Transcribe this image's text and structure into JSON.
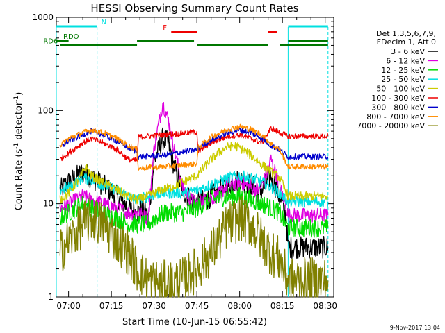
{
  "chart_data": {
    "type": "line",
    "title": "HESSI Observing Summary Count Rates",
    "xlabel": "Start Time (10-Jun-15 06:55:42)",
    "ylabel": "Count Rate (s",
    "ylabel_sup1": "-1",
    "ylabel_mid": " detector",
    "ylabel_sup2": "-1",
    "ylabel_end": ")",
    "y_scale": "log",
    "ylim": [
      1,
      1000
    ],
    "xlim": [
      "06:55:42",
      "08:33:00"
    ],
    "x_ticks": [
      "07:00",
      "07:15",
      "07:30",
      "07:45",
      "08:00",
      "08:15",
      "08:30"
    ],
    "y_ticks": [
      "1",
      "10",
      "100",
      "1000"
    ],
    "grid": false,
    "footer": "9-Nov-2017 13:04",
    "legend": {
      "position": "right",
      "header": [
        "Det 1,3,5,6,7,9,",
        "FDecim 1, Att 0"
      ],
      "entries": [
        {
          "name": "3 - 6 keV",
          "color": "#000000"
        },
        {
          "name": "6 - 12 keV",
          "color": "#e000e0"
        },
        {
          "name": "12 - 25 keV",
          "color": "#00dd00"
        },
        {
          "name": "25 - 50 keV",
          "color": "#00e0e0"
        },
        {
          "name": "50 - 100 keV",
          "color": "#cccc00"
        },
        {
          "name": "100 - 300 keV",
          "color": "#ee0000"
        },
        {
          "name": "300 - 800 keV",
          "color": "#0000cc"
        },
        {
          "name": "800 - 7000 keV",
          "color": "#ff8c00"
        },
        {
          "name": "7000 - 20000 keV",
          "color": "#808000"
        }
      ]
    },
    "flags": [
      {
        "label": "N",
        "color": "#00e0e0",
        "value": 800,
        "segments": [
          [
            "06:55:42",
            "07:10"
          ],
          [
            "08:17",
            "08:31"
          ]
        ]
      },
      {
        "label": "F",
        "color": "#ee0000",
        "value": 700,
        "segments": [
          [
            "07:36",
            "07:45"
          ],
          [
            "08:10",
            "08:13"
          ]
        ]
      },
      {
        "label": "RDO",
        "color": "#007700",
        "value": 560,
        "segments": [
          [
            "06:55:42",
            "07:00"
          ],
          [
            "07:24",
            "07:44"
          ],
          [
            "08:17",
            "08:31"
          ]
        ]
      },
      {
        "label": "RD6",
        "color": "#007700",
        "value": 500,
        "segments": [
          [
            "06:57",
            "07:24"
          ],
          [
            "07:45",
            "08:10"
          ],
          [
            "08:14",
            "08:31"
          ]
        ]
      }
    ],
    "saa_vlines": [
      "06:55:42",
      "07:10",
      "08:17",
      "08:31"
    ],
    "series": [
      {
        "name": "3 - 6 keV",
        "color": "#000000",
        "noise": 0.12,
        "points": [
          [
            "06:57",
            14
          ],
          [
            "07:00",
            17
          ],
          [
            "07:05",
            22
          ],
          [
            "07:08",
            19
          ],
          [
            "07:12",
            16
          ],
          [
            "07:17",
            12
          ],
          [
            "07:21",
            9
          ],
          [
            "07:24",
            8
          ],
          [
            "07:26",
            9
          ],
          [
            "07:28",
            7
          ],
          [
            "07:30",
            28
          ],
          [
            "07:33",
            50
          ],
          [
            "07:35",
            45
          ],
          [
            "07:37",
            25
          ],
          [
            "07:40",
            14
          ],
          [
            "07:43",
            11
          ],
          [
            "07:45",
            10
          ],
          [
            "07:48",
            11
          ],
          [
            "07:52",
            13
          ],
          [
            "07:56",
            16
          ],
          [
            "08:00",
            18
          ],
          [
            "08:04",
            16
          ],
          [
            "08:07",
            13
          ],
          [
            "08:09",
            16
          ],
          [
            "08:11",
            20
          ],
          [
            "08:13",
            14
          ],
          [
            "08:16",
            8
          ],
          [
            "08:17",
            3.4
          ],
          [
            "08:31",
            3.4
          ]
        ]
      },
      {
        "name": "6 - 12 keV",
        "color": "#e000e0",
        "noise": 0.08,
        "points": [
          [
            "06:57",
            9
          ],
          [
            "07:00",
            10
          ],
          [
            "07:05",
            12
          ],
          [
            "07:08",
            11
          ],
          [
            "07:12",
            10
          ],
          [
            "07:17",
            9
          ],
          [
            "07:21",
            8
          ],
          [
            "07:24",
            8
          ],
          [
            "07:28",
            7
          ],
          [
            "07:30",
            40
          ],
          [
            "07:33",
            120
          ],
          [
            "07:35",
            80
          ],
          [
            "07:37",
            40
          ],
          [
            "07:40",
            15
          ],
          [
            "07:43",
            11
          ],
          [
            "07:45",
            10
          ],
          [
            "07:48",
            11
          ],
          [
            "07:52",
            12
          ],
          [
            "07:56",
            16
          ],
          [
            "08:00",
            17
          ],
          [
            "08:04",
            15
          ],
          [
            "08:07",
            14
          ],
          [
            "08:09",
            19
          ],
          [
            "08:11",
            30
          ],
          [
            "08:13",
            20
          ],
          [
            "08:16",
            10
          ],
          [
            "08:17",
            7.5
          ],
          [
            "08:31",
            7.5
          ]
        ]
      },
      {
        "name": "12 - 25 keV",
        "color": "#00dd00",
        "noise": 0.1,
        "points": [
          [
            "06:57",
            7
          ],
          [
            "07:00",
            8
          ],
          [
            "07:05",
            10
          ],
          [
            "07:08",
            9
          ],
          [
            "07:12",
            8
          ],
          [
            "07:17",
            7
          ],
          [
            "07:21",
            6
          ],
          [
            "07:24",
            6
          ],
          [
            "07:28",
            6
          ],
          [
            "07:30",
            7
          ],
          [
            "07:34",
            8
          ],
          [
            "07:37",
            8
          ],
          [
            "07:40",
            8
          ],
          [
            "07:45",
            9
          ],
          [
            "07:50",
            11
          ],
          [
            "07:56",
            12
          ],
          [
            "08:00",
            12
          ],
          [
            "08:04",
            11
          ],
          [
            "08:08",
            10
          ],
          [
            "08:11",
            9
          ],
          [
            "08:14",
            8
          ],
          [
            "08:17",
            5.5
          ],
          [
            "08:31",
            5.5
          ]
        ]
      },
      {
        "name": "25 - 50 keV",
        "color": "#00e0e0",
        "noise": 0.06,
        "points": [
          [
            "06:57",
            14
          ],
          [
            "07:00",
            15
          ],
          [
            "07:05",
            19
          ],
          [
            "07:08",
            18
          ],
          [
            "07:12",
            16
          ],
          [
            "07:17",
            14
          ],
          [
            "07:21",
            12
          ],
          [
            "07:24",
            11
          ],
          [
            "07:28",
            12
          ],
          [
            "07:32",
            13
          ],
          [
            "07:36",
            13
          ],
          [
            "07:40",
            13
          ],
          [
            "07:45",
            14
          ],
          [
            "07:50",
            16
          ],
          [
            "07:56",
            19
          ],
          [
            "08:00",
            20
          ],
          [
            "08:04",
            19
          ],
          [
            "08:08",
            17
          ],
          [
            "08:11",
            15
          ],
          [
            "08:14",
            13
          ],
          [
            "08:17",
            10.5
          ],
          [
            "08:31",
            10.5
          ]
        ]
      },
      {
        "name": "50 - 100 keV",
        "color": "#cccc00",
        "noise": 0.05,
        "points": [
          [
            "06:57",
            11
          ],
          [
            "07:00",
            13
          ],
          [
            "07:04",
            19
          ],
          [
            "07:06",
            25
          ],
          [
            "07:08",
            20
          ],
          [
            "07:12",
            17
          ],
          [
            "07:17",
            14
          ],
          [
            "07:21",
            12
          ],
          [
            "07:24",
            11
          ],
          [
            "07:28",
            12
          ],
          [
            "07:32",
            14
          ],
          [
            "07:36",
            15
          ],
          [
            "07:40",
            17
          ],
          [
            "07:45",
            20
          ],
          [
            "07:50",
            30
          ],
          [
            "07:55",
            40
          ],
          [
            "07:58",
            42
          ],
          [
            "08:00",
            40
          ],
          [
            "08:04",
            33
          ],
          [
            "08:08",
            26
          ],
          [
            "08:11",
            22
          ],
          [
            "08:14",
            19
          ],
          [
            "08:17",
            12
          ],
          [
            "08:31",
            12
          ]
        ]
      },
      {
        "name": "100 - 300 keV",
        "color": "#ee0000",
        "noise": 0.03,
        "points": [
          [
            "06:57",
            30
          ],
          [
            "07:00",
            35
          ],
          [
            "07:05",
            45
          ],
          [
            "07:08",
            50
          ],
          [
            "07:12",
            45
          ],
          [
            "07:17",
            38
          ],
          [
            "07:21",
            30
          ],
          [
            "07:24",
            29
          ],
          [
            "07:24.5",
            52
          ],
          [
            "07:33",
            55
          ],
          [
            "07:40",
            57
          ],
          [
            "07:45",
            59
          ],
          [
            "07:45.5",
            36
          ],
          [
            "07:50",
            45
          ],
          [
            "07:56",
            53
          ],
          [
            "08:00",
            55
          ],
          [
            "08:04",
            50
          ],
          [
            "08:08",
            45
          ],
          [
            "08:11",
            65
          ],
          [
            "08:13",
            60
          ],
          [
            "08:17",
            53
          ],
          [
            "08:31",
            53
          ]
        ]
      },
      {
        "name": "300 - 800 keV",
        "color": "#0000cc",
        "noise": 0.03,
        "points": [
          [
            "06:57",
            40
          ],
          [
            "07:00",
            47
          ],
          [
            "07:05",
            55
          ],
          [
            "07:08",
            60
          ],
          [
            "07:12",
            55
          ],
          [
            "07:17",
            47
          ],
          [
            "07:21",
            40
          ],
          [
            "07:24",
            36
          ],
          [
            "07:24.5",
            32
          ],
          [
            "07:33",
            33
          ],
          [
            "07:40",
            36
          ],
          [
            "07:45",
            38
          ],
          [
            "07:45.5",
            40
          ],
          [
            "07:50",
            48
          ],
          [
            "07:56",
            58
          ],
          [
            "08:00",
            62
          ],
          [
            "08:04",
            58
          ],
          [
            "08:08",
            50
          ],
          [
            "08:11",
            42
          ],
          [
            "08:14",
            38
          ],
          [
            "08:17",
            32
          ],
          [
            "08:31",
            32
          ]
        ]
      },
      {
        "name": "800 - 7000 keV",
        "color": "#ff8c00",
        "noise": 0.03,
        "points": [
          [
            "06:57",
            42
          ],
          [
            "07:00",
            50
          ],
          [
            "07:05",
            58
          ],
          [
            "07:08",
            62
          ],
          [
            "07:12",
            58
          ],
          [
            "07:17",
            50
          ],
          [
            "07:21",
            42
          ],
          [
            "07:24",
            38
          ],
          [
            "07:24.5",
            24
          ],
          [
            "07:33",
            25
          ],
          [
            "07:40",
            26
          ],
          [
            "07:45",
            27
          ],
          [
            "07:45.5",
            40
          ],
          [
            "07:50",
            52
          ],
          [
            "07:56",
            63
          ],
          [
            "08:00",
            67
          ],
          [
            "08:04",
            63
          ],
          [
            "08:08",
            54
          ],
          [
            "08:11",
            44
          ],
          [
            "08:14",
            38
          ],
          [
            "08:17",
            25
          ],
          [
            "08:31",
            25
          ]
        ]
      },
      {
        "name": "7000 - 20000 keV",
        "color": "#808000",
        "noise": 0.25,
        "points": [
          [
            "06:57",
            3
          ],
          [
            "07:00",
            4
          ],
          [
            "07:05",
            6
          ],
          [
            "07:08",
            7
          ],
          [
            "07:12",
            6
          ],
          [
            "07:17",
            4
          ],
          [
            "07:21",
            3
          ],
          [
            "07:24",
            2
          ],
          [
            "07:28",
            1.5
          ],
          [
            "07:32",
            1.4
          ],
          [
            "07:36",
            1.4
          ],
          [
            "07:40",
            1.5
          ],
          [
            "07:45",
            2
          ],
          [
            "07:50",
            3
          ],
          [
            "07:56",
            6
          ],
          [
            "08:00",
            7
          ],
          [
            "08:04",
            6
          ],
          [
            "08:08",
            4
          ],
          [
            "08:11",
            3
          ],
          [
            "08:14",
            2.5
          ],
          [
            "08:17",
            1.5
          ],
          [
            "08:31",
            1.5
          ]
        ]
      }
    ]
  }
}
